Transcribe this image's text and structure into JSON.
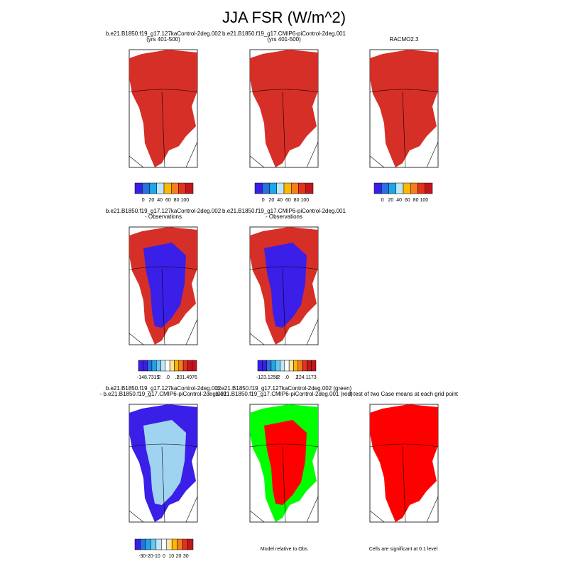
{
  "title": "JJA FSR (W/m^2)",
  "panels": [
    {
      "title": [
        "b.e21.B1850.f19_g17.127kaControl-2deg.002",
        "(yrs 401-500)"
      ]
    },
    {
      "title": [
        "b.e21.B1850.f19_g17.CMIP6-piControl-2deg.001",
        "(yrs 401-500)"
      ]
    },
    {
      "title": [
        "RACMO2.3"
      ]
    },
    {
      "title": [
        "b.e21.B1850.f19_g17.127kaControl-2deg.002",
        "- Observations"
      ]
    },
    {
      "title": [
        "b.e21.B1850.f19_g17.CMIP6-piControl-2deg.001",
        "- Observations"
      ]
    },
    {
      "title": [
        "b.e21.B1850.f19_g17.127kaControl-2deg.002",
        "- b.e21.B1850.f19_g17.CMIP6-piControl-2deg.001"
      ]
    },
    {
      "title": [
        "b.e21.B1850.f19_g17.127kaControl-2deg.002 (green)",
        "b.e21.B1850.f19_g17.CMIP6-piControl-2deg.001 (red)"
      ]
    },
    {
      "title": [
        "t-test of two Case means at each grid point"
      ]
    }
  ],
  "colorbars": [
    {
      "labels": [
        "0",
        "20",
        "40",
        "60",
        "80",
        "100"
      ]
    },
    {
      "labels": [
        "0",
        "20",
        "40",
        "60",
        "80",
        "100"
      ]
    },
    {
      "labels": [
        "0",
        "20",
        "40",
        "60",
        "80",
        "100"
      ]
    },
    {
      "labels": [
        "-148.7315",
        "-.2",
        ".0",
        ".2",
        "101.4976"
      ]
    },
    {
      "labels": [
        "-123.1258",
        "-.2",
        ".0",
        ".2",
        "124.1173"
      ]
    },
    {
      "labels": [
        "-30",
        "-20",
        "-10",
        "0",
        "10",
        "20",
        "30"
      ]
    }
  ],
  "notes": [
    "Model relative to Obs",
    "Cells are significant at 0.1 level"
  ]
}
